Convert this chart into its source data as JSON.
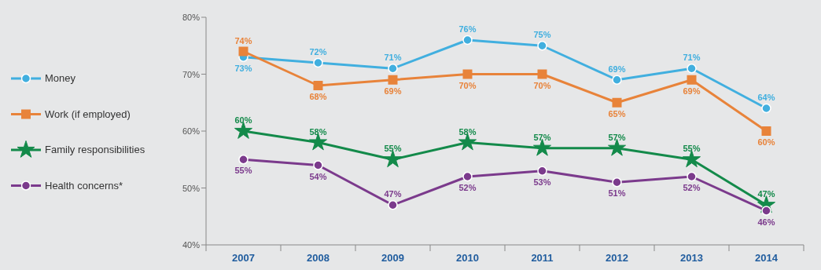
{
  "chart_data": {
    "type": "line",
    "categories": [
      "2007",
      "2008",
      "2009",
      "2010",
      "2011",
      "2012",
      "2013",
      "2014"
    ],
    "series": [
      {
        "name": "Money",
        "color": "#41afdf",
        "marker": "circle",
        "values": [
          73,
          72,
          71,
          76,
          75,
          69,
          71,
          64
        ],
        "value_labels": [
          "73%",
          "72%",
          "71%",
          "76%",
          "75%",
          "69%",
          "71%",
          "64%"
        ]
      },
      {
        "name": "Work (if employed)",
        "color": "#e8833a",
        "marker": "square",
        "values": [
          74,
          68,
          69,
          70,
          70,
          65,
          69,
          60
        ],
        "value_labels": [
          "74%",
          "68%",
          "69%",
          "70%",
          "70%",
          "65%",
          "69%",
          "60%"
        ]
      },
      {
        "name": "Family responsibilities",
        "color": "#138a4a",
        "marker": "star",
        "values": [
          60,
          58,
          55,
          58,
          57,
          57,
          55,
          47
        ],
        "value_labels": [
          "60%",
          "58%",
          "55%",
          "58%",
          "57%",
          "57%",
          "55%",
          "47%"
        ]
      },
      {
        "name": "Health concerns*",
        "color": "#7b3a8c",
        "marker": "circle",
        "values": [
          55,
          54,
          47,
          52,
          53,
          51,
          52,
          46
        ],
        "value_labels": [
          "55%",
          "54%",
          "47%",
          "52%",
          "53%",
          "51%",
          "52%",
          "46%"
        ]
      }
    ],
    "ylim": [
      40,
      80
    ],
    "yticks": [
      {
        "value": 40,
        "label": "40%"
      },
      {
        "value": 50,
        "label": "50%"
      },
      {
        "value": 60,
        "label": "60%"
      },
      {
        "value": 70,
        "label": "70%"
      },
      {
        "value": 80,
        "label": "80%"
      }
    ],
    "grid": false,
    "legend": "left"
  }
}
